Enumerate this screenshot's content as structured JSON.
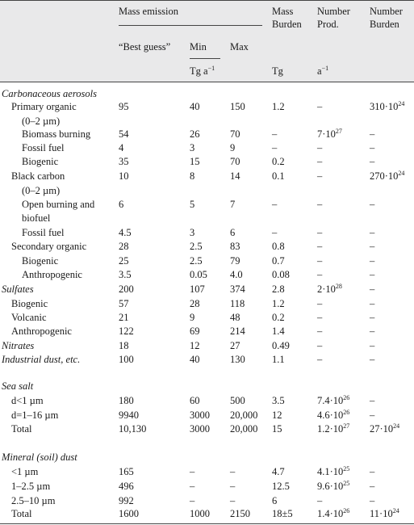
{
  "header": {
    "mass_emission": "Mass emission",
    "mass_burden": [
      "Mass",
      "Burden"
    ],
    "number_prod": [
      "Number",
      "Prod."
    ],
    "number_burden": [
      "Number",
      "Burden"
    ],
    "best_guess": "“Best guess”",
    "min": "Min",
    "max": "Max",
    "unit_tg_base": "Tg a",
    "unit_tg_sup": "−1",
    "unit_burden": "Tg",
    "unit_num_base": "a",
    "unit_num_sup": "−1"
  },
  "rows": [
    {
      "label": "Carbonaceous aerosols",
      "indent": 0,
      "italic": true,
      "cells": [
        "",
        "",
        "",
        "",
        "",
        ""
      ]
    },
    {
      "label": "Primary organic",
      "indent": 1,
      "cells": [
        "95",
        "40",
        "150",
        "1.2",
        "–",
        "310·10^24"
      ]
    },
    {
      "label": "(0–2 µm)",
      "indent": 2,
      "cells": [
        "",
        "",
        "",
        "",
        "",
        ""
      ]
    },
    {
      "label": "Biomass burning",
      "indent": 2,
      "cells": [
        "54",
        "26",
        "70",
        "–",
        "7·10^27",
        "–"
      ]
    },
    {
      "label": "Fossil fuel",
      "indent": 2,
      "cells": [
        "4",
        "3",
        "9",
        "–",
        "–",
        "–"
      ]
    },
    {
      "label": "Biogenic",
      "indent": 2,
      "cells": [
        "35",
        "15",
        "70",
        "0.2",
        "–",
        "–"
      ]
    },
    {
      "label": "Black carbon",
      "indent": 1,
      "cells": [
        "10",
        "8",
        "14",
        "0.1",
        "–",
        "270·10^24"
      ]
    },
    {
      "label": "(0–2 µm)",
      "indent": 2,
      "cells": [
        "",
        "",
        "",
        "",
        "",
        ""
      ]
    },
    {
      "label": "Open burning and",
      "indent": 2,
      "cells": [
        "6",
        "5",
        "7",
        "–",
        "–",
        "–"
      ]
    },
    {
      "label": "biofuel",
      "indent": 2,
      "cells": [
        "",
        "",
        "",
        "",
        "",
        ""
      ]
    },
    {
      "label": "Fossil fuel",
      "indent": 2,
      "cells": [
        "4.5",
        "3",
        "6",
        "–",
        "–",
        "–"
      ]
    },
    {
      "label": "Secondary organic",
      "indent": 1,
      "cells": [
        "28",
        "2.5",
        "83",
        "0.8",
        "–",
        "–"
      ]
    },
    {
      "label": "Biogenic",
      "indent": 2,
      "cells": [
        "25",
        "2.5",
        "79",
        "0.7",
        "–",
        "–"
      ]
    },
    {
      "label": "Anthropogenic",
      "indent": 2,
      "cells": [
        "3.5",
        "0.05",
        "4.0",
        "0.08",
        "–",
        "–"
      ]
    },
    {
      "label": "Sulfates",
      "indent": 0,
      "italic": true,
      "cells": [
        "200",
        "107",
        "374",
        "2.8",
        "2·10^28",
        "–"
      ]
    },
    {
      "label": "Biogenic",
      "indent": 1,
      "cells": [
        "57",
        "28",
        "118",
        "1.2",
        "–",
        "–"
      ]
    },
    {
      "label": "Volcanic",
      "indent": 1,
      "cells": [
        "21",
        "9",
        "48",
        "0.2",
        "–",
        "–"
      ]
    },
    {
      "label": "Anthropogenic",
      "indent": 1,
      "cells": [
        "122",
        "69",
        "214",
        "1.4",
        "–",
        "–"
      ]
    },
    {
      "label": "Nitrates",
      "indent": 0,
      "italic": true,
      "cells": [
        "18",
        "12",
        "27",
        "0.49",
        "–",
        "–"
      ]
    },
    {
      "label": "Industrial dust, etc.",
      "indent": 0,
      "italic": true,
      "cells": [
        "100",
        "40",
        "130",
        "1.1",
        "–",
        "–"
      ]
    },
    {
      "label": "Sea salt",
      "indent": 0,
      "italic": true,
      "cells": [
        "",
        "",
        "",
        "",
        "",
        ""
      ]
    },
    {
      "label": "d<1 µm",
      "indent": 1,
      "cells": [
        "180",
        "60",
        "500",
        "3.5",
        "7.4·10^26",
        "–"
      ]
    },
    {
      "label": "d=1–16 µm",
      "indent": 1,
      "cells": [
        "9940",
        "3000",
        "20,000",
        "12",
        "4.6·10^26",
        "–"
      ]
    },
    {
      "label": "Total",
      "indent": 1,
      "cells": [
        "10,130",
        "3000",
        "20,000",
        "15",
        "1.2·10^27",
        "27·10^24"
      ]
    },
    {
      "label": "Mineral (soil) dust",
      "indent": 0,
      "italic": true,
      "cells": [
        "",
        "",
        "",
        "",
        "",
        ""
      ]
    },
    {
      "label": "<1 µm",
      "indent": 1,
      "cells": [
        "165",
        "–",
        "–",
        "4.7",
        "4.1·10^25",
        "–"
      ]
    },
    {
      "label": "1–2.5 µm",
      "indent": 1,
      "cells": [
        "496",
        "–",
        "–",
        "12.5",
        "9.6·10^25",
        "–"
      ]
    },
    {
      "label": "2.5–10 µm",
      "indent": 1,
      "cells": [
        "992",
        "–",
        "–",
        "6",
        "–",
        "–"
      ]
    },
    {
      "label": "Total",
      "indent": 1,
      "cells": [
        "1600",
        "1000",
        "2150",
        "18±5",
        "1.4·10^26",
        "11·10^24"
      ]
    }
  ]
}
